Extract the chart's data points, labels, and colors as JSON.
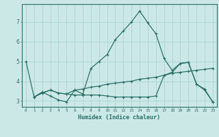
{
  "xlabel": "Humidex (Indice chaleur)",
  "background_color": "#cce8e6",
  "grid_color": "#a8d4d2",
  "line_color": "#2a7068",
  "xlim": [
    -0.5,
    23.5
  ],
  "ylim": [
    2.7,
    7.9
  ],
  "xticks": [
    0,
    1,
    2,
    3,
    4,
    5,
    6,
    7,
    8,
    9,
    10,
    11,
    12,
    13,
    14,
    15,
    16,
    17,
    18,
    19,
    20,
    21,
    22,
    23
  ],
  "yticks": [
    3,
    4,
    5,
    6,
    7
  ],
  "line1_x": [
    0,
    1,
    2,
    3,
    4,
    5,
    6,
    7,
    8,
    9,
    10,
    11,
    12,
    13,
    14,
    15,
    16,
    17,
    18,
    19,
    20,
    21,
    22,
    23
  ],
  "line1_y": [
    5.0,
    3.2,
    3.45,
    3.25,
    3.05,
    2.95,
    3.55,
    3.35,
    4.65,
    5.0,
    5.35,
    6.1,
    6.55,
    7.0,
    7.55,
    6.95,
    6.4,
    5.15,
    4.55,
    4.9,
    4.95,
    3.85,
    3.6,
    2.95
  ],
  "line2_x": [
    1,
    2,
    3,
    4,
    5,
    6,
    7,
    8,
    9,
    10,
    11,
    12,
    13,
    14,
    15,
    16,
    17,
    18,
    19,
    20,
    21,
    22,
    23
  ],
  "line2_y": [
    3.2,
    3.4,
    3.55,
    3.4,
    3.35,
    3.55,
    3.6,
    3.7,
    3.75,
    3.85,
    3.9,
    3.95,
    4.0,
    4.1,
    4.15,
    4.2,
    4.3,
    4.4,
    4.45,
    4.5,
    4.55,
    4.6,
    4.65
  ],
  "line3_x": [
    1,
    2,
    3,
    4,
    5,
    6,
    7,
    8,
    9,
    10,
    11,
    12,
    13,
    14,
    15,
    16,
    17,
    18,
    19,
    20,
    21,
    22,
    23
  ],
  "line3_y": [
    3.2,
    3.4,
    3.55,
    3.4,
    3.35,
    3.3,
    3.3,
    3.3,
    3.3,
    3.25,
    3.2,
    3.2,
    3.2,
    3.2,
    3.2,
    3.25,
    4.3,
    4.45,
    4.9,
    4.95,
    3.85,
    3.55,
    2.95
  ],
  "marker": "+",
  "markersize": 3,
  "linewidth": 0.9
}
